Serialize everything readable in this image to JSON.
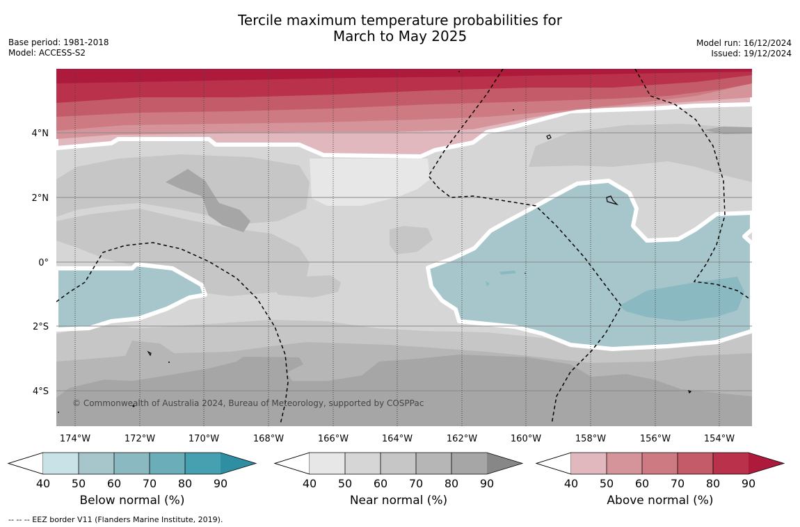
{
  "title": {
    "line1": "Tercile maximum temperature probabilities for",
    "line2": "March to May 2025"
  },
  "meta_left": {
    "base_period": "Base period: 1981-2018",
    "model": "Model: ACCESS-S2"
  },
  "meta_right": {
    "model_run": "Model run: 16/12/2024",
    "issued": "Issued: 19/12/2024"
  },
  "map": {
    "lat_labels": [
      "4°N",
      "2°N",
      "0°",
      "2°S",
      "4°S"
    ],
    "lon_labels": [
      "174°W",
      "172°W",
      "170°W",
      "168°W",
      "166°W",
      "164°W",
      "162°W",
      "160°W",
      "158°W",
      "156°W",
      "154°W"
    ],
    "copyright": "© Commonwealth of Australia 2024, Bureau of Meteorology, supported by COSPPac"
  },
  "legends": [
    {
      "label": "Below normal (%)",
      "ticks": [
        "40",
        "50",
        "60",
        "70",
        "80",
        "90"
      ],
      "colors": [
        "#c8e2e8",
        "#a7c6cc",
        "#8bb9c1",
        "#6badb8",
        "#47a0b0",
        "#2f8ea2"
      ]
    },
    {
      "label": "Near normal (%)",
      "ticks": [
        "40",
        "50",
        "60",
        "70",
        "80",
        "90"
      ],
      "colors": [
        "#e7e7e7",
        "#d6d6d6",
        "#c6c6c6",
        "#b6b6b6",
        "#a6a6a6",
        "#878787"
      ]
    },
    {
      "label": "Above normal (%)",
      "ticks": [
        "40",
        "50",
        "60",
        "70",
        "80",
        "90"
      ],
      "colors": [
        "#e2b8bf",
        "#d59499",
        "#cd7a82",
        "#c45b68",
        "#b9314a",
        "#ad1a3b"
      ]
    }
  ],
  "footnote": "--  --  -- EEZ border V11 (Flanders Marine Institute, 2019)."
}
